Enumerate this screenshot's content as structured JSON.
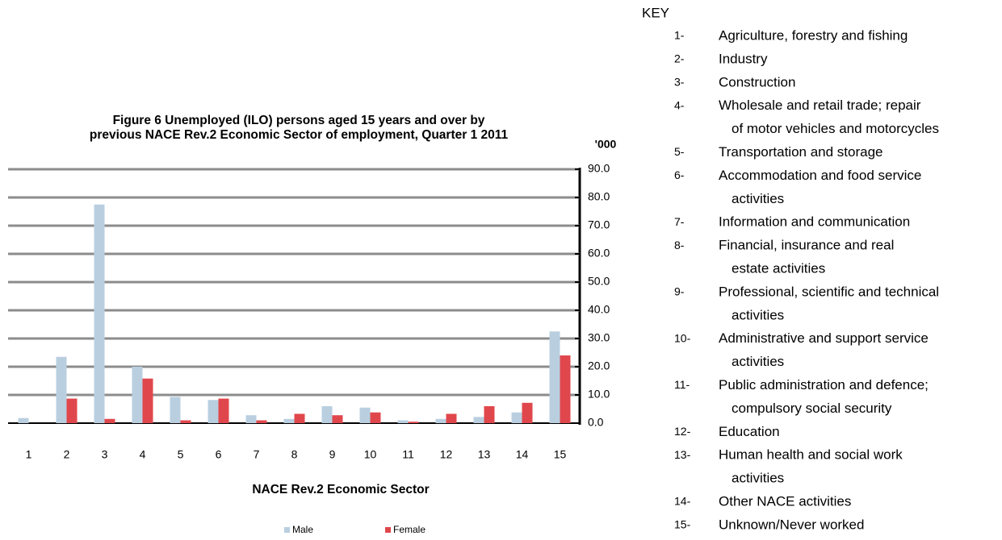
{
  "chart_data": {
    "type": "bar",
    "title_lines": [
      "Figure 6  Unemployed (ILO) persons  aged 15 years and over  by",
      "previous NACE  Rev.2 Economic Sector of employment, Quarter 1 2011"
    ],
    "xlabel": "NACE Rev.2 Economic Sector",
    "ylabel": "'000",
    "categories": [
      "1",
      "2",
      "3",
      "4",
      "5",
      "6",
      "7",
      "8",
      "9",
      "10",
      "11",
      "12",
      "13",
      "14",
      "15"
    ],
    "series": [
      {
        "name": "Male",
        "color": "#b9cfe0",
        "values": [
          1.8,
          23.5,
          77.5,
          20.0,
          9.3,
          8.2,
          2.8,
          1.5,
          6.0,
          5.5,
          1.0,
          1.5,
          2.2,
          3.8,
          32.5
        ]
      },
      {
        "name": "Female",
        "color": "#e0474c",
        "values": [
          0,
          8.7,
          1.5,
          15.8,
          1.0,
          8.7,
          1.0,
          3.3,
          2.8,
          3.8,
          0.5,
          3.3,
          6.0,
          7.2,
          24.0
        ]
      }
    ],
    "ylim": [
      0,
      90
    ],
    "yticks": [
      {
        "value": 0,
        "label": "0.0"
      },
      {
        "value": 10,
        "label": "10.0"
      },
      {
        "value": 20,
        "label": "20.0"
      },
      {
        "value": 30,
        "label": "30.0"
      },
      {
        "value": 40,
        "label": "40.0"
      },
      {
        "value": 50,
        "label": "50.0"
      },
      {
        "value": 60,
        "label": "60.0"
      },
      {
        "value": 70,
        "label": "70.0"
      },
      {
        "value": 80,
        "label": "80.0"
      },
      {
        "value": 90,
        "label": "90.0"
      }
    ],
    "grid": true,
    "legend": "bottom"
  },
  "key": {
    "title": "KEY",
    "items": [
      {
        "number": "1-",
        "lines": [
          "Agriculture, forestry and fishing"
        ]
      },
      {
        "number": "2-",
        "lines": [
          "Industry"
        ]
      },
      {
        "number": "3-",
        "lines": [
          "Construction"
        ]
      },
      {
        "number": "4-",
        "lines": [
          "Wholesale and retail trade; repair",
          "of motor vehicles and motorcycles"
        ]
      },
      {
        "number": "5-",
        "lines": [
          "Transportation and storage"
        ]
      },
      {
        "number": "6-",
        "lines": [
          "Accommodation and food service",
          "activities"
        ]
      },
      {
        "number": "7-",
        "lines": [
          "Information and communication"
        ]
      },
      {
        "number": "8-",
        "lines": [
          "Financial, insurance and real",
          "estate activities"
        ]
      },
      {
        "number": "9-",
        "lines": [
          "Professional, scientific and technical",
          "activities"
        ]
      },
      {
        "number": "10-",
        "lines": [
          "Administrative and support service",
          "activities"
        ]
      },
      {
        "number": "11-",
        "lines": [
          "Public administration and defence;",
          "compulsory social security"
        ]
      },
      {
        "number": "12-",
        "lines": [
          "Education"
        ]
      },
      {
        "number": "13-",
        "lines": [
          "Human health and social work",
          "activities"
        ]
      },
      {
        "number": "14-",
        "lines": [
          "Other NACE activities"
        ]
      },
      {
        "number": "15-",
        "lines": [
          "Unknown/Never worked"
        ]
      }
    ]
  }
}
